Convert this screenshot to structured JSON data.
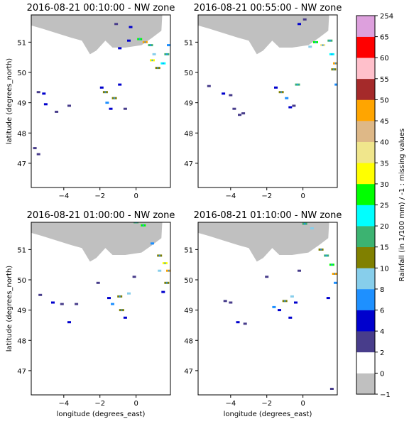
{
  "chart_data": {
    "type": "heatmap",
    "panels": [
      {
        "title": "2016-08-21 00:10:00 - NW zone",
        "ylabel": "latitude (degrees_north)",
        "xlabel": "",
        "cells": [
          [
            -5.4,
            49.35,
            3
          ],
          [
            -5.1,
            49.3,
            4
          ],
          [
            -5.0,
            48.95,
            4
          ],
          [
            -4.4,
            48.7,
            3
          ],
          [
            -3.7,
            48.9,
            2
          ],
          [
            -1.9,
            49.5,
            5
          ],
          [
            -1.7,
            49.35,
            12
          ],
          [
            -1.6,
            49.0,
            6
          ],
          [
            -1.4,
            48.8,
            4
          ],
          [
            -1.2,
            49.15,
            10
          ],
          [
            -0.9,
            49.6,
            5
          ],
          [
            -0.6,
            48.8,
            3
          ],
          [
            -0.9,
            50.8,
            5
          ],
          [
            -0.4,
            51.05,
            4
          ],
          [
            0.2,
            51.1,
            25
          ],
          [
            0.5,
            51.0,
            45
          ],
          [
            0.8,
            50.9,
            18
          ],
          [
            1.0,
            50.6,
            8
          ],
          [
            0.9,
            50.4,
            30
          ],
          [
            1.2,
            50.15,
            12
          ],
          [
            1.5,
            50.3,
            20
          ],
          [
            1.7,
            50.6,
            15
          ],
          [
            1.8,
            50.9,
            6
          ],
          [
            -1.1,
            51.6,
            3
          ],
          [
            -0.3,
            51.5,
            4
          ],
          [
            -5.6,
            47.5,
            2
          ],
          [
            -5.4,
            47.3,
            2
          ]
        ]
      },
      {
        "title": "2016-08-21 00:55:00 - NW zone",
        "ylabel": "",
        "xlabel": "",
        "cells": [
          [
            -4.4,
            49.3,
            4
          ],
          [
            -4.0,
            49.25,
            3
          ],
          [
            -3.8,
            48.8,
            3
          ],
          [
            -3.5,
            48.6,
            3
          ],
          [
            -3.3,
            48.65,
            2
          ],
          [
            -1.5,
            49.5,
            5
          ],
          [
            -1.2,
            49.35,
            12
          ],
          [
            -0.9,
            49.15,
            6
          ],
          [
            -0.7,
            48.85,
            4
          ],
          [
            -0.3,
            49.6,
            15
          ],
          [
            -0.5,
            48.9,
            3
          ],
          [
            0.4,
            50.85,
            8
          ],
          [
            0.7,
            51.0,
            25
          ],
          [
            1.1,
            50.9,
            35
          ],
          [
            1.5,
            51.05,
            18
          ],
          [
            1.6,
            50.6,
            20
          ],
          [
            1.8,
            50.3,
            45
          ],
          [
            1.7,
            50.1,
            10
          ],
          [
            1.85,
            49.6,
            6
          ],
          [
            -0.2,
            51.6,
            4
          ],
          [
            0.1,
            51.75,
            3
          ],
          [
            -5.2,
            49.55,
            2
          ]
        ]
      },
      {
        "title": "2016-08-21 01:00:00 - NW zone",
        "ylabel": "latitude (degrees_north)",
        "xlabel": "longitude (degrees_east)",
        "cells": [
          [
            -5.3,
            49.5,
            3
          ],
          [
            -4.6,
            49.25,
            4
          ],
          [
            -4.1,
            49.2,
            3
          ],
          [
            -3.7,
            48.6,
            4
          ],
          [
            -3.3,
            49.2,
            2
          ],
          [
            -1.5,
            49.4,
            5
          ],
          [
            -1.3,
            49.2,
            6
          ],
          [
            -0.9,
            49.45,
            12
          ],
          [
            -0.8,
            49.0,
            10
          ],
          [
            -0.4,
            49.55,
            8
          ],
          [
            -0.6,
            48.75,
            4
          ],
          [
            0.0,
            51.9,
            18
          ],
          [
            0.4,
            51.8,
            25
          ],
          [
            0.9,
            51.2,
            6
          ],
          [
            1.3,
            50.8,
            12
          ],
          [
            1.6,
            50.55,
            30
          ],
          [
            1.8,
            50.3,
            45
          ],
          [
            1.3,
            50.3,
            8
          ],
          [
            1.7,
            49.9,
            10
          ],
          [
            1.5,
            49.6,
            4
          ],
          [
            -2.1,
            49.9,
            2
          ],
          [
            -0.1,
            50.1,
            2
          ]
        ]
      },
      {
        "title": "2016-08-21 01:10:00 - NW zone",
        "ylabel": "",
        "xlabel": "longitude (degrees_east)",
        "cells": [
          [
            -4.3,
            49.3,
            3
          ],
          [
            -4.0,
            49.25,
            3
          ],
          [
            -3.6,
            48.6,
            4
          ],
          [
            -3.2,
            48.55,
            2
          ],
          [
            -1.6,
            49.1,
            6
          ],
          [
            -1.3,
            49.0,
            5
          ],
          [
            -1.0,
            49.3,
            12
          ],
          [
            -0.6,
            49.45,
            8
          ],
          [
            -0.4,
            49.25,
            5
          ],
          [
            -0.7,
            48.75,
            4
          ],
          [
            0.1,
            51.85,
            18
          ],
          [
            0.5,
            51.7,
            8
          ],
          [
            1.0,
            51.0,
            10
          ],
          [
            1.3,
            50.8,
            15
          ],
          [
            1.6,
            50.5,
            25
          ],
          [
            1.75,
            50.2,
            45
          ],
          [
            1.8,
            49.9,
            6
          ],
          [
            1.4,
            49.4,
            4
          ],
          [
            -2.0,
            50.1,
            2
          ],
          [
            -0.2,
            50.3,
            2
          ],
          [
            1.6,
            46.4,
            2
          ]
        ]
      }
    ],
    "xlim": [
      -5.8,
      1.9
    ],
    "ylim": [
      46.2,
      51.9
    ],
    "xticks": [
      -4,
      -2,
      0
    ],
    "yticks": [
      47,
      48,
      49,
      50,
      51
    ],
    "missing_region": "grey",
    "colorbar": {
      "label": "Rainfall (in 1/100 mm) / -1 : missing values",
      "tick_labels": [
        "-1",
        "0",
        "2",
        "4",
        "6",
        "8",
        "10",
        "15",
        "20",
        "25",
        "30",
        "35",
        "40",
        "45",
        "50",
        "55",
        "60",
        "65",
        "254"
      ],
      "colors": [
        "#c0c0c0",
        "#ffffff",
        "#483d8b",
        "#0000cd",
        "#1e90ff",
        "#87ceeb",
        "#808000",
        "#3cb371",
        "#00ffff",
        "#00ff00",
        "#ffff00",
        "#f0e68c",
        "#deb887",
        "#ffa500",
        "#a52a2a",
        "#ffc0cb",
        "#ff0000",
        "#dda0dd"
      ]
    }
  }
}
